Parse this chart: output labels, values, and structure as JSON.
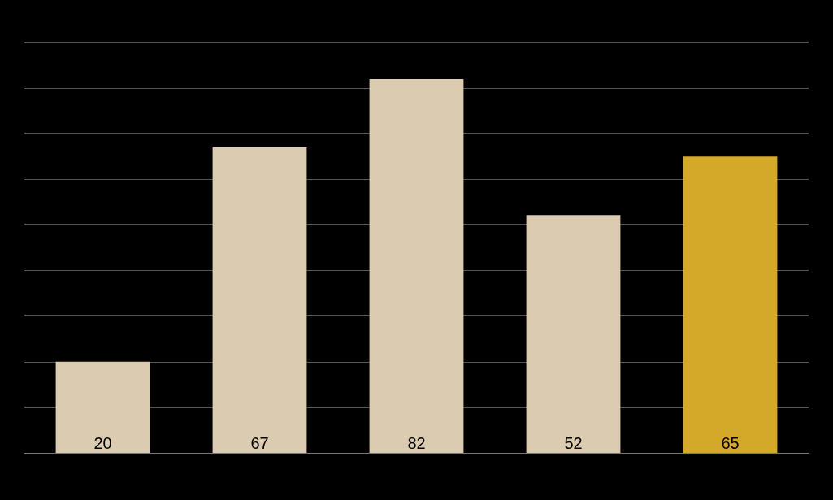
{
  "chart_data": {
    "type": "bar",
    "categories": [
      null,
      null,
      null,
      null,
      null
    ],
    "values": [
      20,
      67,
      82,
      52,
      65
    ],
    "colors": [
      "#dbcbb0",
      "#dbcbb0",
      "#dbcbb0",
      "#dbcbb0",
      "#d4a92a"
    ],
    "ylim": [
      0,
      90
    ],
    "yticks": [
      {
        "value": 0,
        "label": null
      },
      {
        "value": 10,
        "label": null
      },
      {
        "value": 20,
        "label": null
      },
      {
        "value": 30,
        "label": null
      },
      {
        "value": 40,
        "label": null
      },
      {
        "value": 50,
        "label": null
      },
      {
        "value": 60,
        "label": null
      },
      {
        "value": 70,
        "label": null
      },
      {
        "value": 80,
        "label": null
      },
      {
        "value": 90,
        "label": null
      }
    ],
    "data_labels": true,
    "grid": "y"
  }
}
